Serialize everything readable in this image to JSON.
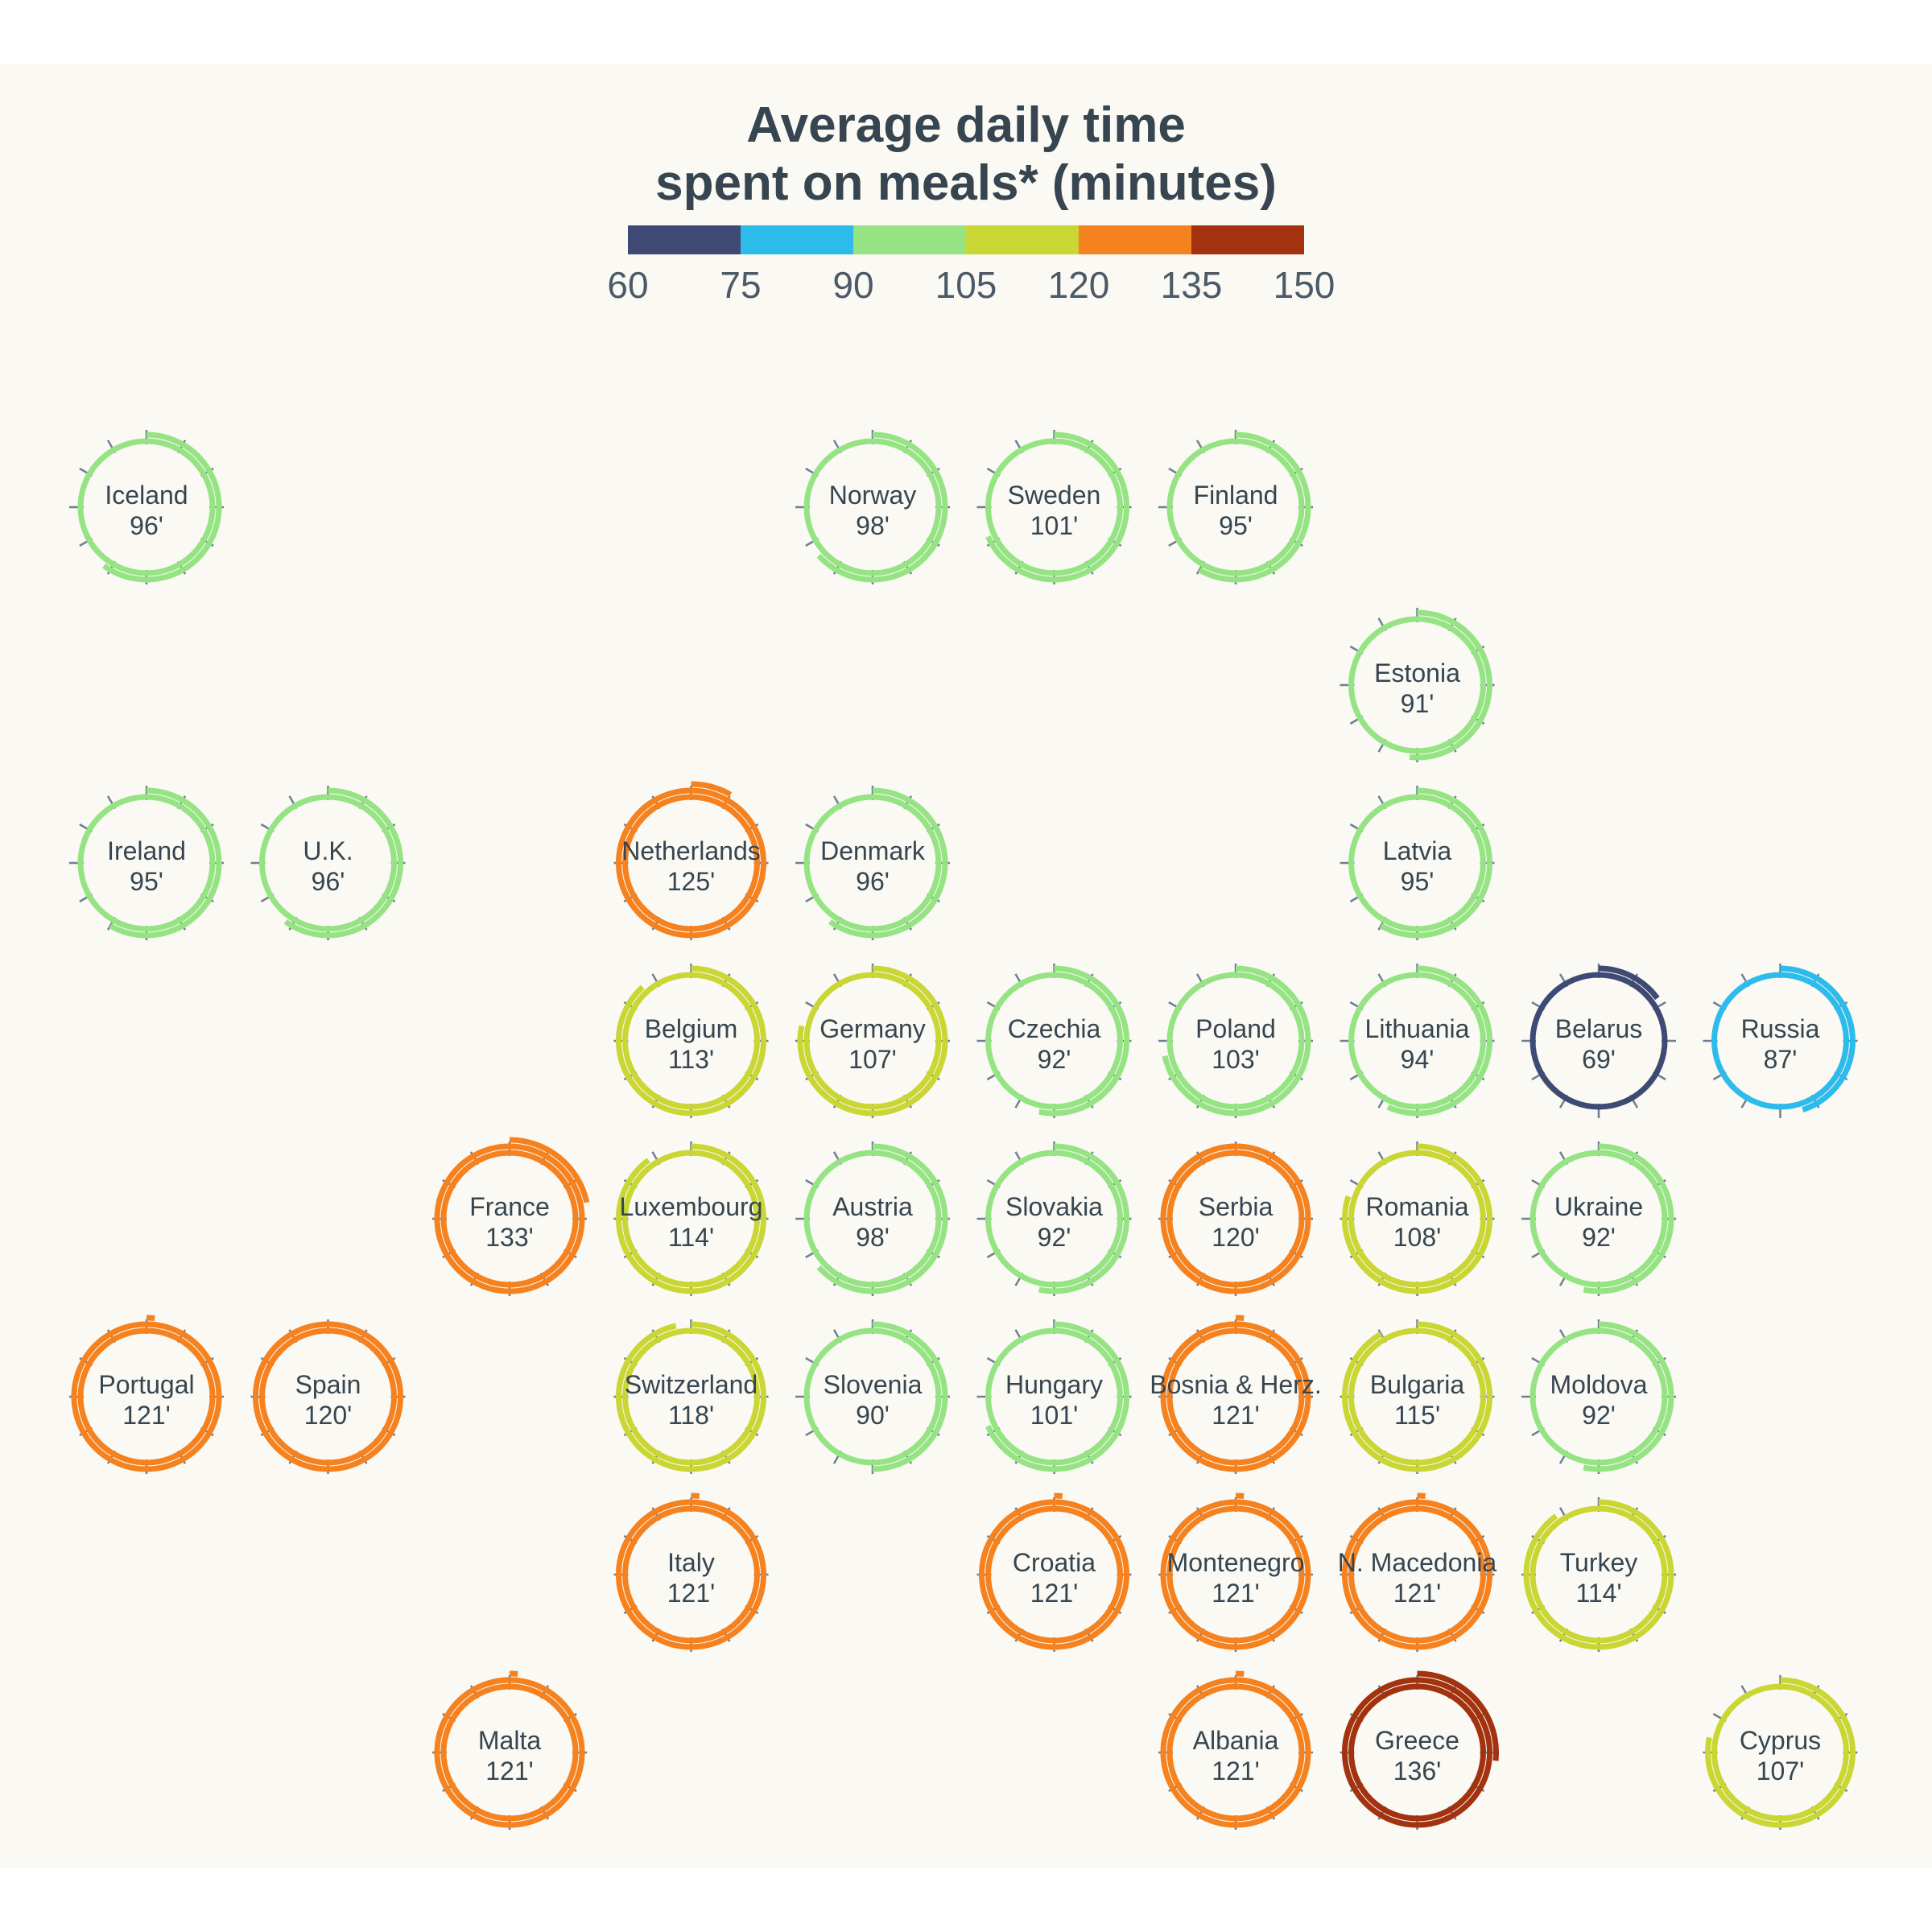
{
  "title_line1": "Average daily time",
  "title_line2": "spent on meals* (minutes)",
  "legend": {
    "breaks": [
      60,
      75,
      90,
      105,
      120,
      135,
      150
    ],
    "colors": [
      "#3f4a74",
      "#2cbbea",
      "#96e384",
      "#cad634",
      "#f5811f",
      "#a3320f"
    ]
  },
  "chart_data": {
    "type": "tile-map-radial",
    "unit": "minutes",
    "cells": [
      {
        "country": "Iceland",
        "value": 96,
        "label": "96'",
        "col": 0,
        "row": 0
      },
      {
        "country": "Norway",
        "value": 98,
        "label": "98'",
        "col": 4,
        "row": 0
      },
      {
        "country": "Sweden",
        "value": 101,
        "label": "101'",
        "col": 5,
        "row": 0
      },
      {
        "country": "Finland",
        "value": 95,
        "label": "95'",
        "col": 6,
        "row": 0
      },
      {
        "country": "Estonia",
        "value": 91,
        "label": "91'",
        "col": 7,
        "row": 1
      },
      {
        "country": "Ireland",
        "value": 95,
        "label": "95'",
        "col": 0,
        "row": 2
      },
      {
        "country": "U.K.",
        "value": 96,
        "label": "96'",
        "col": 1,
        "row": 2
      },
      {
        "country": "Netherlands",
        "value": 125,
        "label": "125'",
        "col": 3,
        "row": 2
      },
      {
        "country": "Denmark",
        "value": 96,
        "label": "96'",
        "col": 4,
        "row": 2
      },
      {
        "country": "Latvia",
        "value": 95,
        "label": "95'",
        "col": 7,
        "row": 2
      },
      {
        "country": "Belgium",
        "value": 113,
        "label": "113'",
        "col": 3,
        "row": 3
      },
      {
        "country": "Germany",
        "value": 107,
        "label": "107'",
        "col": 4,
        "row": 3
      },
      {
        "country": "Czechia",
        "value": 92,
        "label": "92'",
        "col": 5,
        "row": 3
      },
      {
        "country": "Poland",
        "value": 103,
        "label": "103'",
        "col": 6,
        "row": 3
      },
      {
        "country": "Lithuania",
        "value": 94,
        "label": "94'",
        "col": 7,
        "row": 3
      },
      {
        "country": "Belarus",
        "value": 69,
        "label": "69'",
        "col": 8,
        "row": 3
      },
      {
        "country": "Russia",
        "value": 87,
        "label": "87'",
        "col": 9,
        "row": 3
      },
      {
        "country": "France",
        "value": 133,
        "label": "133'",
        "col": 2,
        "row": 4
      },
      {
        "country": "Luxembourg",
        "value": 114,
        "label": "114'",
        "col": 3,
        "row": 4
      },
      {
        "country": "Austria",
        "value": 98,
        "label": "98'",
        "col": 4,
        "row": 4
      },
      {
        "country": "Slovakia",
        "value": 92,
        "label": "92'",
        "col": 5,
        "row": 4
      },
      {
        "country": "Serbia",
        "value": 120,
        "label": "120'",
        "col": 6,
        "row": 4
      },
      {
        "country": "Romania",
        "value": 108,
        "label": "108'",
        "col": 7,
        "row": 4
      },
      {
        "country": "Ukraine",
        "value": 92,
        "label": "92'",
        "col": 8,
        "row": 4
      },
      {
        "country": "Portugal",
        "value": 121,
        "label": "121'",
        "col": 0,
        "row": 5
      },
      {
        "country": "Spain",
        "value": 120,
        "label": "120'",
        "col": 1,
        "row": 5
      },
      {
        "country": "Switzerland",
        "value": 118,
        "label": "118'",
        "col": 3,
        "row": 5
      },
      {
        "country": "Slovenia",
        "value": 90,
        "label": "90'",
        "col": 4,
        "row": 5
      },
      {
        "country": "Hungary",
        "value": 101,
        "label": "101'",
        "col": 5,
        "row": 5
      },
      {
        "country": "Bosnia & Herz.",
        "value": 121,
        "label": "121'",
        "col": 6,
        "row": 5
      },
      {
        "country": "Bulgaria",
        "value": 115,
        "label": "115'",
        "col": 7,
        "row": 5
      },
      {
        "country": "Moldova",
        "value": 92,
        "label": "92'",
        "col": 8,
        "row": 5
      },
      {
        "country": "Italy",
        "value": 121,
        "label": "121'",
        "col": 3,
        "row": 6
      },
      {
        "country": "Croatia",
        "value": 121,
        "label": "121'",
        "col": 5,
        "row": 6
      },
      {
        "country": "Montenegro",
        "value": 121,
        "label": "121'",
        "col": 6,
        "row": 6
      },
      {
        "country": "N. Macedonia",
        "value": 121,
        "label": "121'",
        "col": 7,
        "row": 6
      },
      {
        "country": "Turkey",
        "value": 114,
        "label": "114'",
        "col": 8,
        "row": 6
      },
      {
        "country": "Malta",
        "value": 121,
        "label": "121'",
        "col": 2,
        "row": 7
      },
      {
        "country": "Albania",
        "value": 121,
        "label": "121'",
        "col": 6,
        "row": 7
      },
      {
        "country": "Greece",
        "value": 136,
        "label": "136'",
        "col": 7,
        "row": 7
      },
      {
        "country": "Cyprus",
        "value": 107,
        "label": "107'",
        "col": 9,
        "row": 7
      }
    ]
  }
}
